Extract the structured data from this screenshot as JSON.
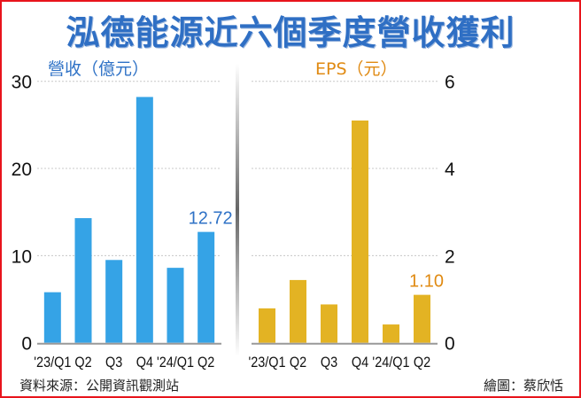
{
  "title": "泓德能源近六個季度營收獲利",
  "source": "資料來源：公開資訊觀測站",
  "credit": "繪圖：蔡欣恬",
  "chart_data": [
    {
      "type": "bar",
      "title": "營收（億元）",
      "categories": [
        "'23/Q1",
        "Q2",
        "Q3",
        "Q4",
        "'24/Q1",
        "Q2"
      ],
      "values": [
        5.8,
        14.3,
        9.5,
        28.2,
        8.6,
        12.72
      ],
      "data_labels": {
        "5": "12.72"
      },
      "ylim": [
        0,
        30
      ],
      "yticks": [
        0,
        10,
        20,
        30
      ],
      "axis_side": "left",
      "grid": true,
      "color": "#35a3e6",
      "label_color": "#2f72c6"
    },
    {
      "type": "bar",
      "title": "EPS（元）",
      "categories": [
        "'23/Q1",
        "Q2",
        "Q3",
        "Q4",
        "'24/Q1",
        "Q2"
      ],
      "values": [
        0.79,
        1.44,
        0.88,
        5.1,
        0.42,
        1.1
      ],
      "data_labels": {
        "5": "1.10"
      },
      "ylim": [
        0,
        6
      ],
      "yticks": [
        0,
        2,
        4,
        6
      ],
      "axis_side": "right",
      "grid": true,
      "color": "#e3b323",
      "label_color": "#e08a12"
    }
  ]
}
